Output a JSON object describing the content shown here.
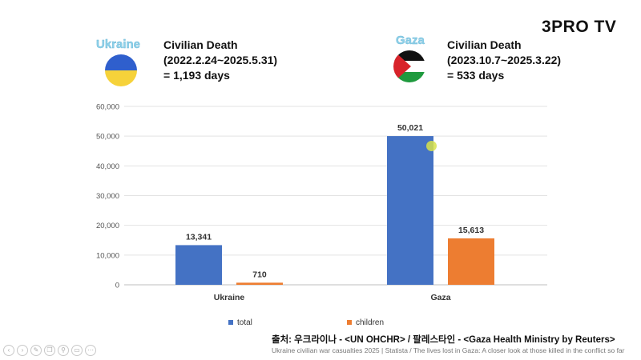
{
  "logo": {
    "text": "3PRO TV"
  },
  "panels": [
    {
      "country": "Ukraine",
      "title": "Civilian Death",
      "period": "(2022.2.24~2025.5.31)",
      "days": "= 1,193 days",
      "flag_icon": "ukraine-flag"
    },
    {
      "country": "Gaza",
      "title": "Civilian Death",
      "period": "(2023.10.7~2025.3.22)",
      "days": "= 533 days",
      "flag_icon": "palestine-flag"
    }
  ],
  "chart_data": {
    "type": "bar",
    "categories": [
      "Ukraine",
      "Gaza"
    ],
    "series": [
      {
        "name": "total",
        "values": [
          13341,
          50021
        ],
        "labels": [
          "13,341",
          "50,021"
        ],
        "color": "#4472c4"
      },
      {
        "name": "children",
        "values": [
          710,
          15613
        ],
        "labels": [
          "710",
          "15,613"
        ],
        "color": "#ed7d31"
      }
    ],
    "ylim": [
      0,
      60000
    ],
    "yticks": [
      0,
      10000,
      20000,
      30000,
      40000,
      50000,
      60000
    ],
    "ytick_labels": [
      "0",
      "10,000",
      "20,000",
      "30,000",
      "40,000",
      "50,000",
      "60,000"
    ],
    "grid": true,
    "legend": "bottom"
  },
  "source": {
    "line1": "출처: 우크라이나 - <UN OHCHR> / 팔레스타인 - <Gaza Health Ministry by Reuters>",
    "line2": "Ukraine civilian war casualties 2025 | Statista / The lives lost in Gaza: A closer look at those killed in the conflict so far"
  },
  "toolbar": {
    "icons": [
      "back-icon",
      "forward-icon",
      "edit-icon",
      "copy-icon",
      "zoom-icon",
      "caption-icon",
      "more-icon"
    ]
  }
}
